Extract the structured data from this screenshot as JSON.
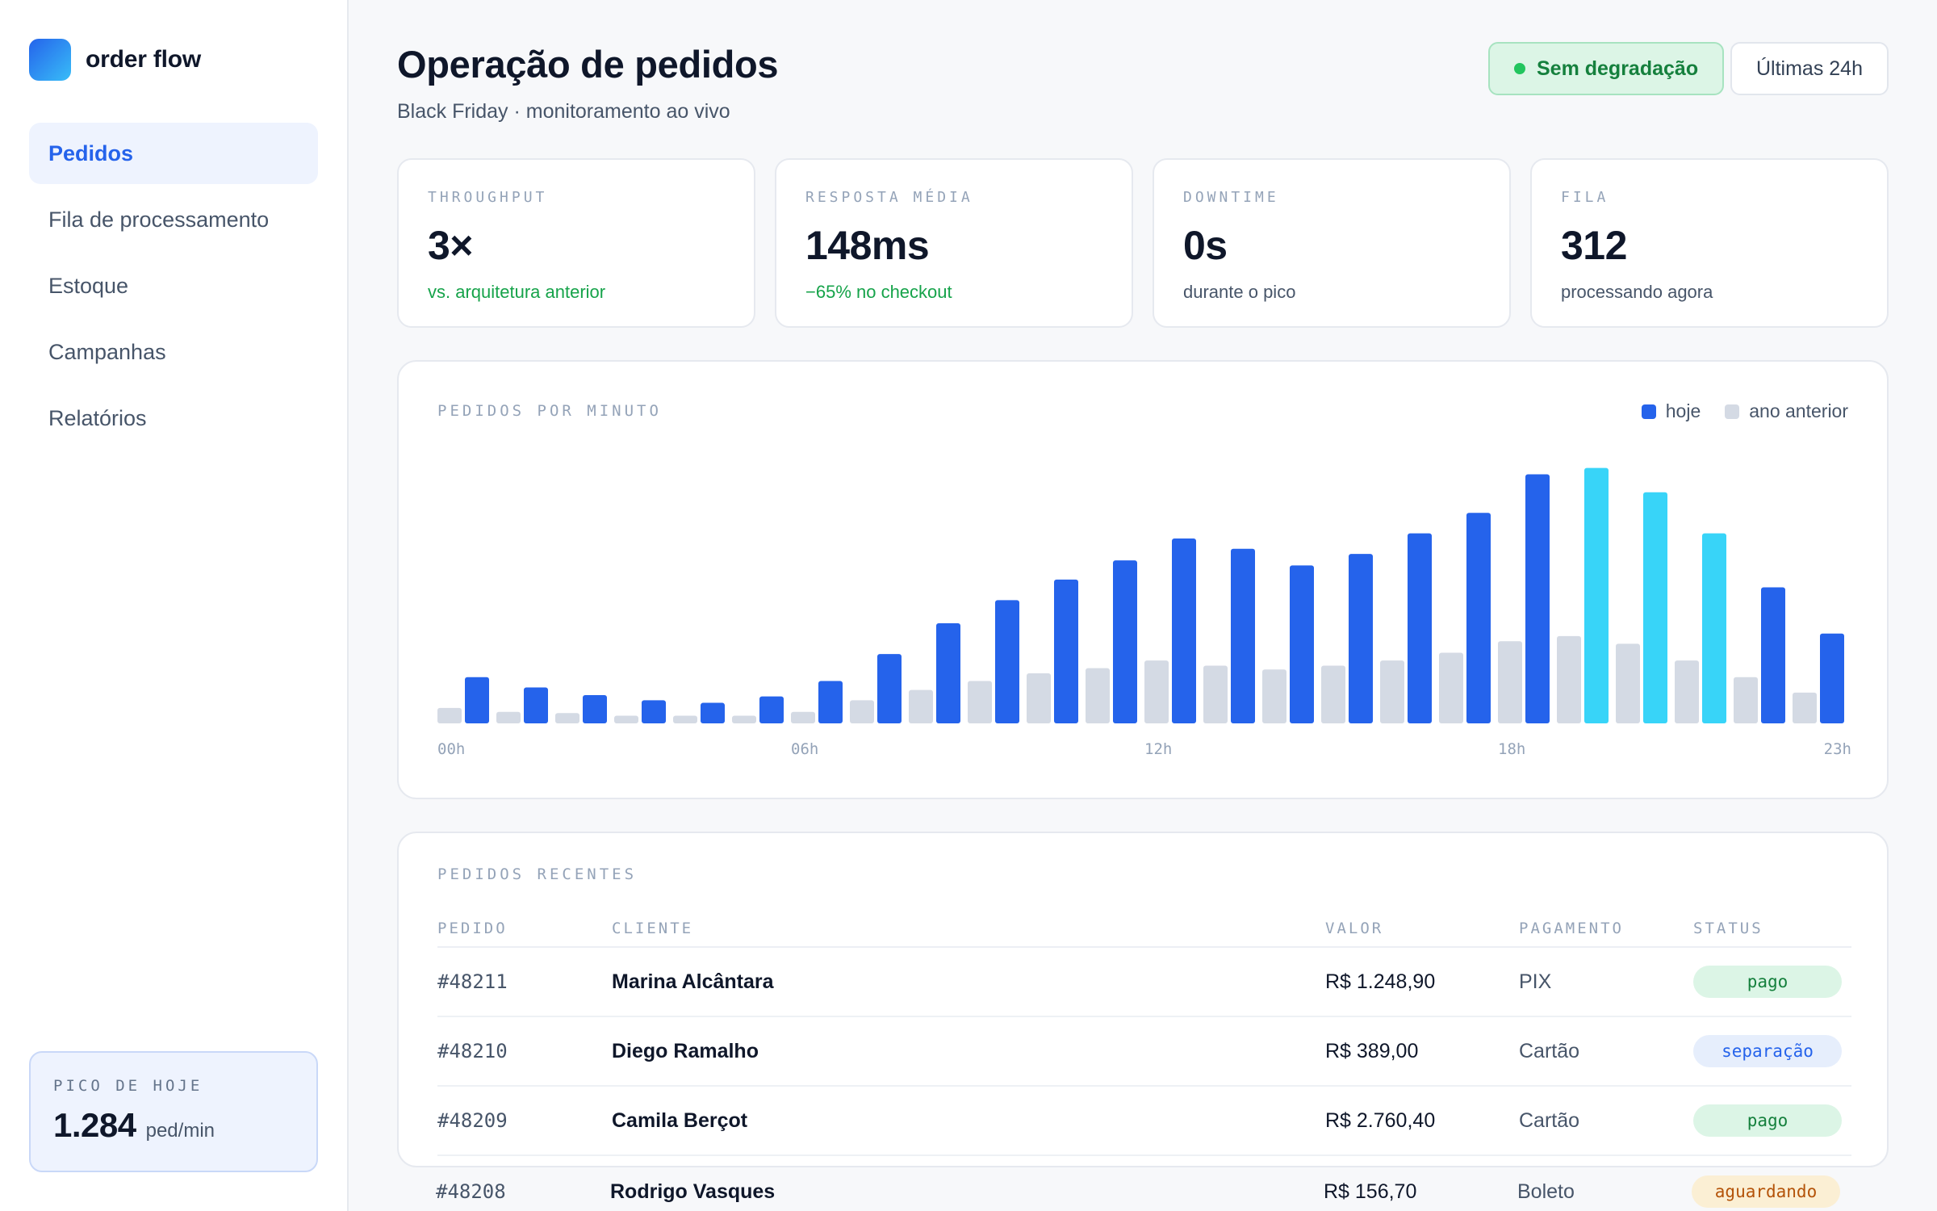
{
  "brand": {
    "name": "order flow"
  },
  "sidebar": {
    "items": [
      {
        "label": "Pedidos",
        "active": true
      },
      {
        "label": "Fila de processamento"
      },
      {
        "label": "Estoque"
      },
      {
        "label": "Campanhas"
      },
      {
        "label": "Relatórios"
      }
    ],
    "peak": {
      "label": "PICO DE HOJE",
      "value": "1.284",
      "unit": "ped/min"
    }
  },
  "header": {
    "title": "Operação de pedidos",
    "subtitle": "Black Friday · monitoramento ao vivo",
    "status": "Sem degradação",
    "range": "Últimas 24h"
  },
  "kpis": [
    {
      "label": "THROUGHPUT",
      "value": "3×",
      "note": "vs. arquitetura anterior",
      "note_tone": "good"
    },
    {
      "label": "RESPOSTA MÉDIA",
      "value": "148ms",
      "note": "−65% no checkout",
      "note_tone": "good"
    },
    {
      "label": "DOWNTIME",
      "value": "0s",
      "note": "durante o pico",
      "note_tone": "neutral"
    },
    {
      "label": "FILA",
      "value": "312",
      "note": "processando agora",
      "note_tone": "neutral"
    }
  ],
  "colors": {
    "accent": "#2563eb",
    "peak": "#38d4f8",
    "previous": "#d4dae4",
    "success": "#16a34a"
  },
  "chart_data": {
    "type": "bar",
    "title": "PEDIDOS POR MINUTO",
    "legend_position": "top-right",
    "categories": [
      "00h",
      "01h",
      "02h",
      "03h",
      "04h",
      "05h",
      "06h",
      "07h",
      "08h",
      "09h",
      "10h",
      "11h",
      "12h",
      "13h",
      "14h",
      "15h",
      "16h",
      "17h",
      "18h",
      "19h",
      "20h",
      "21h",
      "22h",
      "23h"
    ],
    "tick_labels": [
      "00h",
      "06h",
      "12h",
      "18h",
      "23h"
    ],
    "peak_hours": [
      "19h",
      "20h",
      "21h"
    ],
    "ylim": [
      0,
      1000
    ],
    "series": [
      {
        "name": "ano anterior",
        "values": [
          60,
          45,
          40,
          30,
          30,
          30,
          45,
          90,
          130,
          165,
          195,
          215,
          245,
          225,
          210,
          225,
          245,
          275,
          320,
          340,
          310,
          245,
          180,
          120
        ]
      },
      {
        "name": "hoje",
        "values": [
          180,
          140,
          110,
          90,
          80,
          105,
          165,
          270,
          390,
          480,
          560,
          635,
          720,
          680,
          615,
          660,
          740,
          820,
          970,
          995,
          900,
          740,
          530,
          350
        ]
      }
    ]
  },
  "orders": {
    "title": "PEDIDOS RECENTES",
    "columns": [
      "PEDIDO",
      "CLIENTE",
      "VALOR",
      "PAGAMENTO",
      "STATUS"
    ],
    "rows": [
      {
        "id": "#48211",
        "client": "Marina Alcântara",
        "value": "R$ 1.248,90",
        "payment": "PIX",
        "status": "pago",
        "tone": "pago"
      },
      {
        "id": "#48210",
        "client": "Diego Ramalho",
        "value": "R$ 389,00",
        "payment": "Cartão",
        "status": "separação",
        "tone": "sep"
      },
      {
        "id": "#48209",
        "client": "Camila Berçot",
        "value": "R$ 2.760,40",
        "payment": "Cartão",
        "status": "pago",
        "tone": "pago"
      },
      {
        "id": "#48208",
        "client": "Rodrigo Vasques",
        "value": "R$ 156,70",
        "payment": "Boleto",
        "status": "aguardando",
        "tone": "ag"
      }
    ]
  }
}
